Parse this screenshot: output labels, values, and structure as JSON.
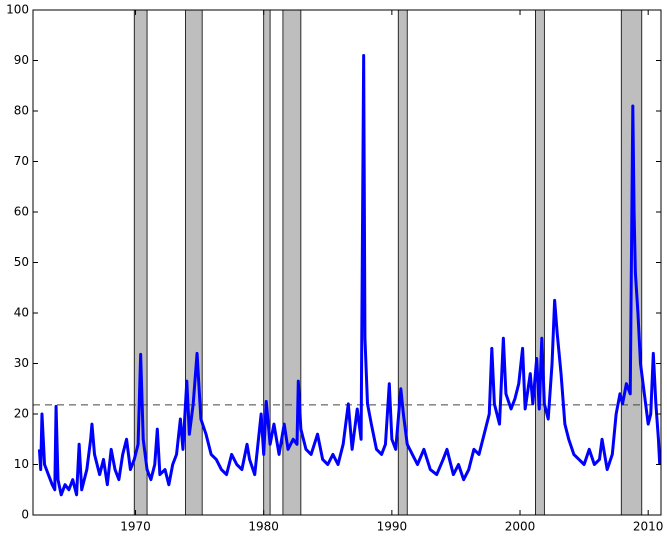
{
  "chart_data": {
    "type": "line",
    "xlim": [
      1962,
      2011
    ],
    "ylim": [
      0,
      100
    ],
    "xticks": [
      1970,
      1980,
      1990,
      2000,
      2010
    ],
    "yticks": [
      0,
      10,
      20,
      30,
      40,
      50,
      60,
      70,
      80,
      90,
      100
    ],
    "color": "#0000ff",
    "shade_color": "#bebebe",
    "shaded_periods": [
      [
        1969.9,
        1970.9
      ],
      [
        1973.9,
        1975.2
      ],
      [
        1980.0,
        1980.5
      ],
      [
        1981.5,
        1982.9
      ],
      [
        1990.5,
        1991.2
      ],
      [
        2001.2,
        2001.9
      ],
      [
        2007.9,
        2009.5
      ]
    ],
    "reference_line": 21.8,
    "x": [
      1962.5,
      1962.6,
      1962.7,
      1962.9,
      1963.2,
      1963.5,
      1963.7,
      1963.8,
      1963.95,
      1964.2,
      1964.5,
      1964.8,
      1965.1,
      1965.4,
      1965.6,
      1965.8,
      1966.2,
      1966.5,
      1966.6,
      1966.8,
      1967.2,
      1967.5,
      1967.8,
      1968.1,
      1968.4,
      1968.7,
      1969.0,
      1969.3,
      1969.6,
      1969.9,
      1970.2,
      1970.4,
      1970.6,
      1970.9,
      1971.2,
      1971.5,
      1971.7,
      1971.9,
      1972.3,
      1972.6,
      1972.9,
      1973.2,
      1973.5,
      1973.7,
      1974.0,
      1974.2,
      1974.5,
      1974.8,
      1975.1,
      1975.5,
      1975.9,
      1976.3,
      1976.7,
      1977.1,
      1977.5,
      1977.9,
      1978.3,
      1978.7,
      1978.9,
      1979.3,
      1979.8,
      1980.0,
      1980.2,
      1980.5,
      1980.8,
      1981.2,
      1981.6,
      1981.9,
      1982.3,
      1982.6,
      1982.7,
      1982.9,
      1983.3,
      1983.7,
      1984.2,
      1984.6,
      1985.0,
      1985.4,
      1985.8,
      1986.2,
      1986.6,
      1986.9,
      1987.3,
      1987.6,
      1987.8,
      1987.9,
      1988.1,
      1988.4,
      1988.8,
      1989.2,
      1989.5,
      1989.8,
      1990.0,
      1990.3,
      1990.7,
      1990.9,
      1991.2,
      1991.6,
      1992.0,
      1992.5,
      1993.0,
      1993.5,
      1994.0,
      1994.3,
      1994.8,
      1995.2,
      1995.6,
      1996.0,
      1996.4,
      1996.8,
      1997.2,
      1997.6,
      1997.8,
      1998.0,
      1998.4,
      1998.7,
      1998.9,
      1999.3,
      1999.6,
      1999.9,
      2000.2,
      2000.4,
      2000.8,
      2001.0,
      2001.3,
      2001.5,
      2001.7,
      2001.9,
      2002.2,
      2002.5,
      2002.7,
      2002.9,
      2003.2,
      2003.5,
      2003.8,
      2004.2,
      2004.6,
      2005.0,
      2005.4,
      2005.8,
      2006.2,
      2006.4,
      2006.8,
      2007.2,
      2007.5,
      2007.8,
      2008.0,
      2008.3,
      2008.6,
      2008.8,
      2008.9,
      2009.0,
      2009.2,
      2009.4,
      2009.7,
      2010.0,
      2010.2,
      2010.4,
      2010.6,
      2010.8,
      2010.9
    ],
    "y": [
      13,
      9,
      20,
      10,
      8,
      6,
      5,
      21.5,
      7,
      4,
      6,
      5,
      7,
      4,
      14,
      5,
      9,
      15,
      18,
      12,
      8,
      11,
      6,
      13,
      9,
      7,
      12,
      15,
      9,
      11,
      14,
      31.8,
      15,
      9,
      7,
      10,
      17,
      8,
      9,
      6,
      10,
      12,
      19,
      13,
      26.5,
      16,
      22,
      32,
      19,
      16,
      12,
      11,
      9,
      8,
      12,
      10,
      9,
      14,
      11,
      8,
      20,
      12,
      22.5,
      14,
      18,
      12,
      18,
      13,
      15,
      14,
      26.5,
      17,
      13,
      12,
      16,
      11,
      10,
      12,
      10,
      14,
      22,
      13,
      21,
      15,
      91,
      35,
      22,
      18,
      13,
      12,
      14,
      26,
      15,
      13,
      25,
      20,
      14,
      12,
      10,
      13,
      9,
      8,
      11,
      13,
      8,
      10,
      7,
      9,
      13,
      12,
      16,
      20,
      33,
      22,
      18,
      35,
      24,
      21,
      23,
      26,
      33,
      21,
      28,
      22,
      31,
      21,
      35,
      22,
      19,
      30,
      42.5,
      36,
      28,
      18,
      15,
      12,
      11,
      10,
      13,
      10,
      11,
      15,
      9,
      12,
      20,
      24,
      22,
      26,
      24,
      81,
      60,
      48,
      40,
      30,
      24,
      18,
      20,
      32,
      22,
      15,
      10
    ]
  }
}
